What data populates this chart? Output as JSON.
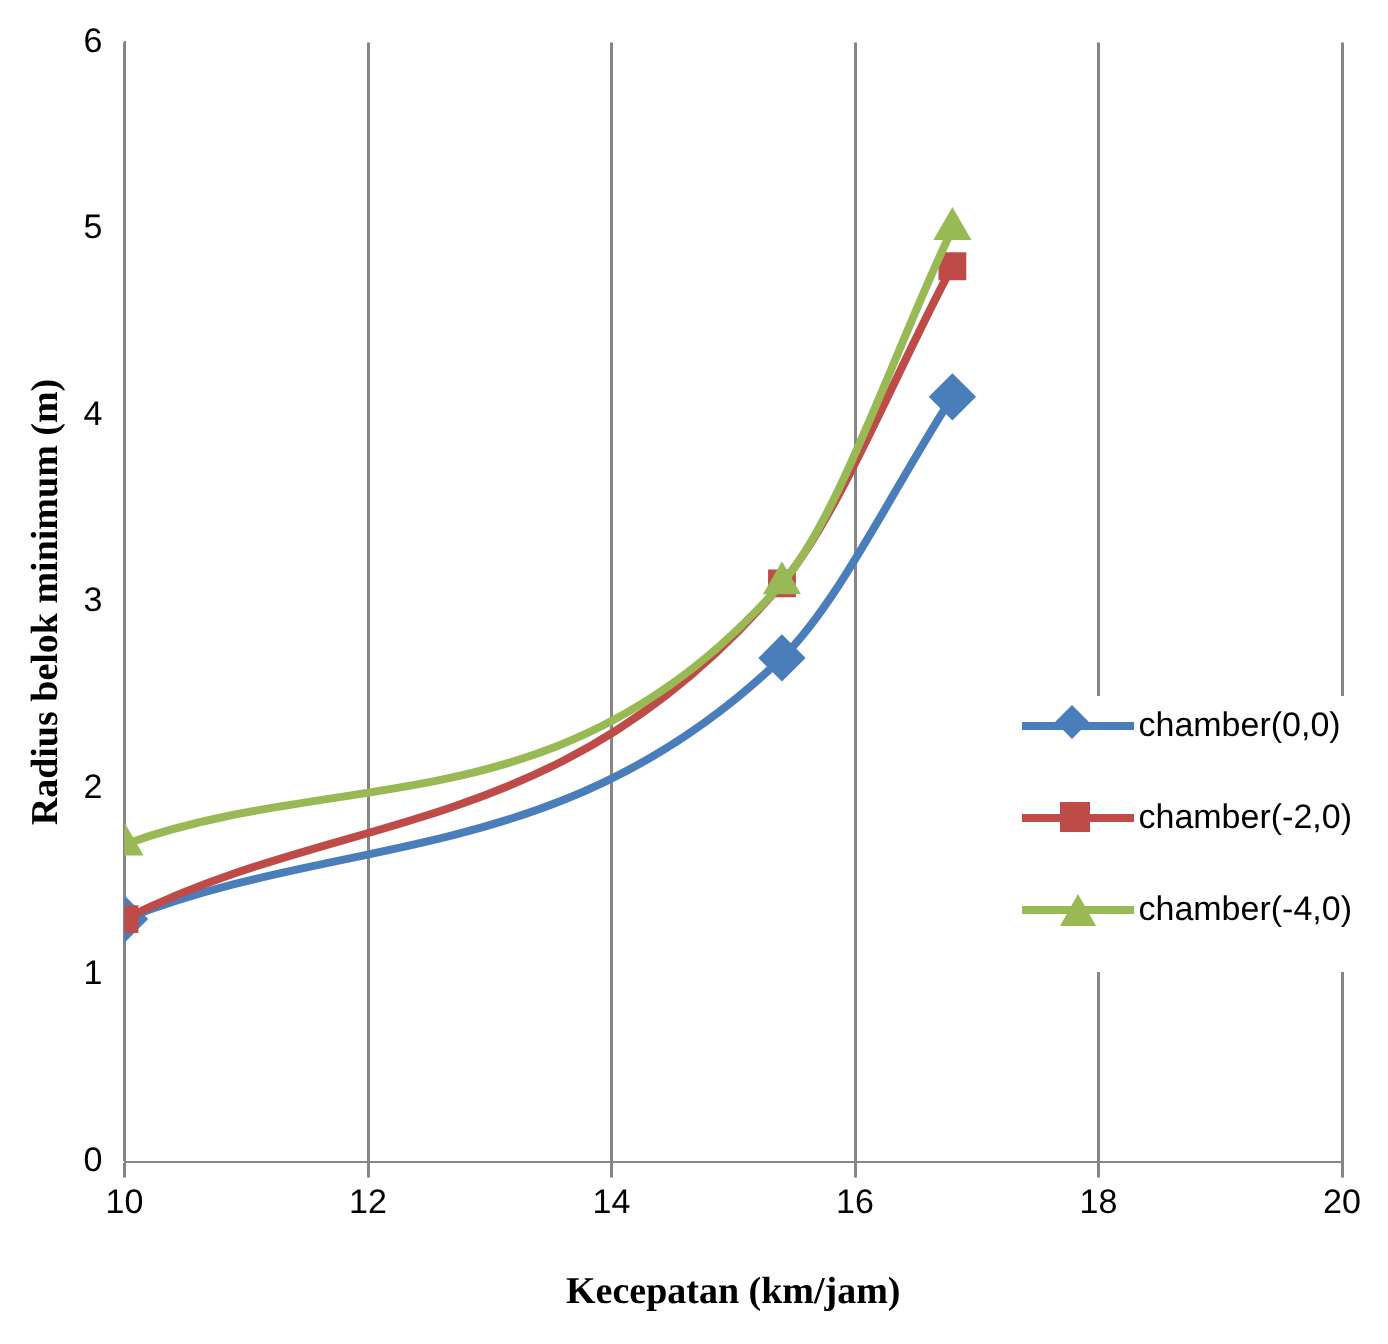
{
  "chart_data": {
    "type": "line",
    "xlabel": "Kecepatan (km/jam)",
    "ylabel": "Radius belok minimum (m)",
    "xlim": [
      10,
      20
    ],
    "xticks": [
      10,
      12,
      14,
      16,
      18,
      20
    ],
    "ylim": [
      0,
      6
    ],
    "yticks": [
      0,
      1,
      2,
      3,
      4,
      5,
      6
    ],
    "grid": "x",
    "legend": "right",
    "line_style": "solid",
    "x": [
      10,
      15.4,
      16.8
    ],
    "series": [
      {
        "name": "chamber(0,0)",
        "color": "#4a7ebb",
        "values": [
          1.3,
          2.7,
          4.1
        ],
        "marker": "diamond"
      },
      {
        "name": "chamber(-2,0)",
        "color": "#be4b48",
        "values": [
          1.3,
          3.1,
          4.8
        ],
        "marker": "square"
      },
      {
        "name": "chamber(-4,0)",
        "color": "#98b954",
        "values": [
          1.7,
          3.1,
          5.0
        ],
        "marker": "triangle"
      }
    ]
  }
}
